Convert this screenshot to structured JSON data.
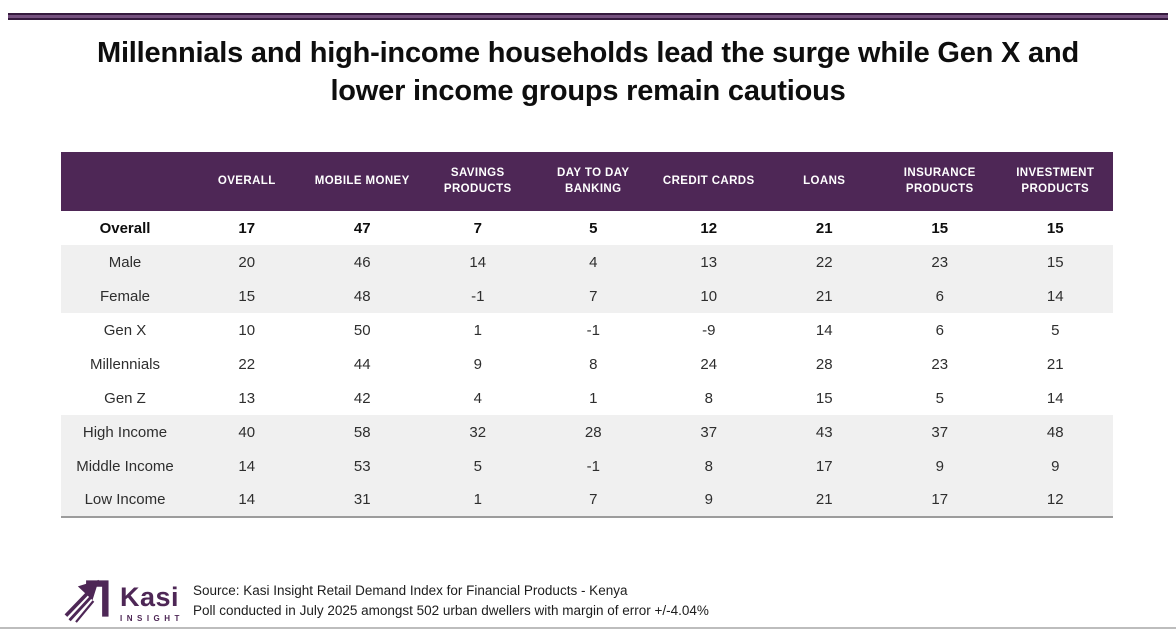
{
  "page": {
    "title_line1": "Millennials and high-income households lead the surge while Gen X and",
    "title_line2": "lower income groups remain cautious"
  },
  "theme": {
    "header_purple": "#4e2756",
    "band_edge_purple": "#351a3e",
    "band_mid_purple": "#75517f",
    "row_shaded_gray": "#f0f0f0",
    "table_bottom_gray": "#9c9c9c",
    "bottom_rule_gray": "#bdbdbd"
  },
  "chart_data": {
    "type": "table",
    "title": "Millennials and high-income households lead the surge while Gen X and lower income groups remain cautious",
    "columns": [
      "OVERALL",
      "MOBILE MONEY",
      "SAVINGS PRODUCTS",
      "DAY TO DAY BANKING",
      "CREDIT CARDS",
      "LOANS",
      "INSURANCE PRODUCTS",
      "INVESTMENT PRODUCTS"
    ],
    "rows": [
      {
        "label": "Overall",
        "values": [
          17,
          47,
          7,
          5,
          12,
          21,
          15,
          15
        ],
        "emphasis": true,
        "shaded": false
      },
      {
        "label": "Male",
        "values": [
          20,
          46,
          14,
          4,
          13,
          22,
          23,
          15
        ],
        "emphasis": false,
        "shaded": true
      },
      {
        "label": "Female",
        "values": [
          15,
          48,
          -1,
          7,
          10,
          21,
          6,
          14
        ],
        "emphasis": false,
        "shaded": true
      },
      {
        "label": "Gen X",
        "values": [
          10,
          50,
          1,
          -1,
          -9,
          14,
          6,
          5
        ],
        "emphasis": false,
        "shaded": false
      },
      {
        "label": "Millennials",
        "values": [
          22,
          44,
          9,
          8,
          24,
          28,
          23,
          21
        ],
        "emphasis": false,
        "shaded": false
      },
      {
        "label": "Gen Z",
        "values": [
          13,
          42,
          4,
          1,
          8,
          15,
          5,
          14
        ],
        "emphasis": false,
        "shaded": false
      },
      {
        "label": "High Income",
        "values": [
          40,
          58,
          32,
          28,
          37,
          43,
          37,
          48
        ],
        "emphasis": false,
        "shaded": true
      },
      {
        "label": "Middle Income",
        "values": [
          14,
          53,
          5,
          -1,
          8,
          17,
          9,
          9
        ],
        "emphasis": false,
        "shaded": true
      },
      {
        "label": "Low Income",
        "values": [
          14,
          31,
          1,
          7,
          9,
          21,
          17,
          12
        ],
        "emphasis": false,
        "shaded": true
      }
    ]
  },
  "footer": {
    "logo": {
      "brand": "Kasi",
      "sub": "INSIGHT",
      "icon": "growth-arrow-icon",
      "color": "#4e2756"
    },
    "source_line1": "Source: Kasi Insight Retail Demand Index for Financial Products - Kenya",
    "source_line2": "Poll conducted in July 2025 amongst  502 urban dwellers with margin of error +/-4.04%"
  }
}
